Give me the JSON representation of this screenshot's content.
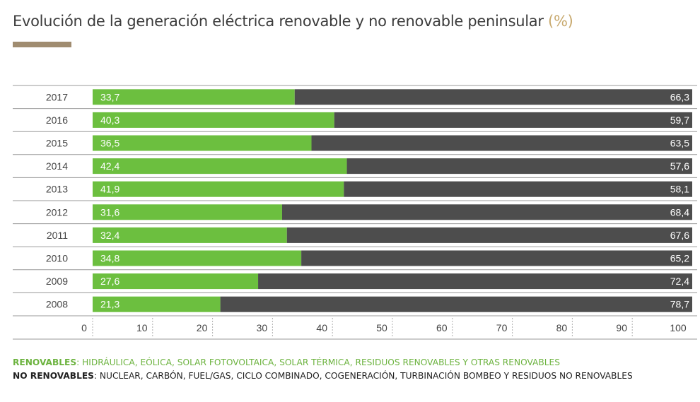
{
  "title": {
    "text": "Evolución de la generación eléctrica renovable y no renovable peninsular",
    "unit": "(%)"
  },
  "colors": {
    "renewable": "#6cbf3f",
    "non_renewable": "#4d4d4d",
    "title_rule": "#a08c70",
    "unit": "#c8a96e"
  },
  "chart_data": {
    "type": "bar",
    "orientation": "horizontal",
    "stacked": true,
    "categories": [
      "2017",
      "2016",
      "2015",
      "2014",
      "2013",
      "2012",
      "2011",
      "2010",
      "2009",
      "2008"
    ],
    "series": [
      {
        "name": "RENOVABLES",
        "values": [
          33.7,
          40.3,
          36.5,
          42.4,
          41.9,
          31.6,
          32.4,
          34.8,
          27.6,
          21.3
        ],
        "labels": [
          "33,7",
          "40,3",
          "36,5",
          "42,4",
          "41,9",
          "31,6",
          "32,4",
          "34,8",
          "27,6",
          "21,3"
        ]
      },
      {
        "name": "NO RENOVABLES",
        "values": [
          66.3,
          59.7,
          63.5,
          57.6,
          58.1,
          68.4,
          67.6,
          65.2,
          72.4,
          78.7
        ],
        "labels": [
          "66,3",
          "59,7",
          "63,5",
          "57,6",
          "58,1",
          "68,4",
          "67,6",
          "65,2",
          "72,4",
          "78,7"
        ]
      }
    ],
    "xlim": [
      0,
      100
    ],
    "xticks": [
      "0",
      "10",
      "20",
      "30",
      "40",
      "50",
      "60",
      "70",
      "80",
      "90",
      "100"
    ],
    "grid": true
  },
  "legend": {
    "renewable_key": "RENOVABLES",
    "renewable_text": ": HIDRÁULICA, EÓLICA, SOLAR FOTOVOLTAICA, SOLAR TÉRMICA, RESIDUOS RENOVABLES Y OTRAS RENOVABLES",
    "non_renewable_key": "NO RENOVABLES",
    "non_renewable_text": ": NUCLEAR, CARBÓN, FUEL/GAS, CICLO COMBINADO, COGENERACIÓN, TURBINACIÓN BOMBEO Y RESIDUOS NO RENOVABLES"
  }
}
